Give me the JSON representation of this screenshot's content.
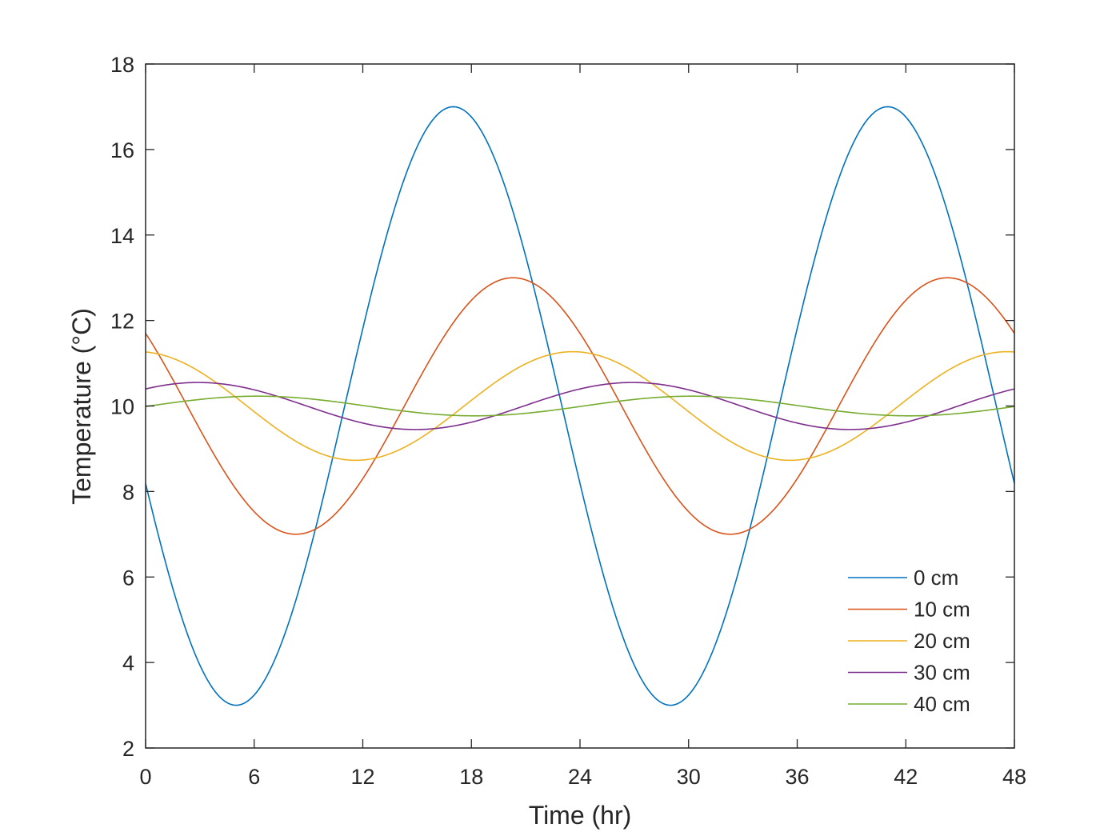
{
  "chart_data": {
    "type": "line",
    "xlabel": "Time (hr)",
    "ylabel": "Temperature (°C)",
    "xlim": [
      0,
      48
    ],
    "ylim": [
      2,
      18
    ],
    "xticks": [
      0,
      6,
      12,
      18,
      24,
      30,
      36,
      42,
      48
    ],
    "yticks": [
      2,
      4,
      6,
      8,
      10,
      12,
      14,
      16,
      18
    ],
    "grid": false,
    "legend_position": "bottom-right",
    "series": [
      {
        "name": "0 cm",
        "color": "#0072BD",
        "mean": 10,
        "amplitude": 7.0,
        "period": 24,
        "time_of_max": 17.0
      },
      {
        "name": "10 cm",
        "color": "#D95319",
        "mean": 10,
        "amplitude": 3.0,
        "period": 24,
        "time_of_max": 20.3
      },
      {
        "name": "20 cm",
        "color": "#EDB120",
        "mean": 10,
        "amplitude": 1.27,
        "period": 24,
        "time_of_max": 23.6
      },
      {
        "name": "30 cm",
        "color": "#7E2F8E",
        "mean": 10,
        "amplitude": 0.55,
        "period": 24,
        "time_of_max": 26.9
      },
      {
        "name": "40 cm",
        "color": "#77AC30",
        "mean": 10,
        "amplitude": 0.23,
        "period": 24,
        "time_of_max": 30.2
      }
    ]
  }
}
